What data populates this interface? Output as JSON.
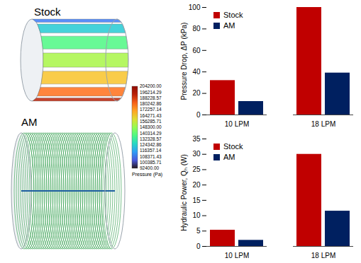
{
  "chart_data": [
    {
      "type": "bar",
      "categories": [
        "10 LPM",
        "18 LPM"
      ],
      "series": [
        {
          "name": "Stock",
          "color": "#c00000",
          "values": [
            32,
            100
          ]
        },
        {
          "name": "AM",
          "color": "#002060",
          "values": [
            12.5,
            39
          ]
        }
      ],
      "ylabel": "Pressure Drop, ΔP (kPa)",
      "ylim": [
        0,
        100
      ],
      "yticks": [
        0,
        20,
        40,
        60,
        80,
        100
      ],
      "legend": "upper left",
      "grid": false
    },
    {
      "type": "bar",
      "categories": [
        "10 LPM",
        "18 LPM"
      ],
      "series": [
        {
          "name": "Stock",
          "color": "#c00000",
          "values": [
            5.3,
            30
          ]
        },
        {
          "name": "AM",
          "color": "#002060",
          "values": [
            2,
            11.5
          ]
        }
      ],
      "ylabel": "Hydraulic Power, Qₕ (W)",
      "ylim": [
        0,
        35
      ],
      "yticks": [
        0,
        5,
        10,
        15,
        20,
        25,
        30,
        35
      ],
      "legend": "upper left",
      "grid": false
    }
  ],
  "renderings": {
    "panels": [
      "Stock",
      "AM"
    ],
    "colorbar": {
      "title": "Pressure (Pa)",
      "range": [
        92400,
        204200
      ],
      "ticks": [
        {
          "value": 204200,
          "label": "204200.00"
        },
        {
          "value": 196214.29,
          "label": "196214.29"
        },
        {
          "value": 188228.57,
          "label": "188228.57"
        },
        {
          "value": 180242.86,
          "label": "180242.86"
        },
        {
          "value": 172257.14,
          "label": "172257.14"
        },
        {
          "value": 164271.43,
          "label": "164271.43"
        },
        {
          "value": 156285.71,
          "label": "156285.71"
        },
        {
          "value": 148300,
          "label": "148300.00"
        },
        {
          "value": 140314.29,
          "label": "140314.29"
        },
        {
          "value": 132328.57,
          "label": "132328.57"
        },
        {
          "value": 124342.86,
          "label": "124342.86"
        },
        {
          "value": 116357.14,
          "label": "116357.14"
        },
        {
          "value": 108371.43,
          "label": "108371.43"
        },
        {
          "value": 100385.71,
          "label": "100385.71"
        },
        {
          "value": 92400,
          "label": "92400.00"
        }
      ]
    }
  }
}
